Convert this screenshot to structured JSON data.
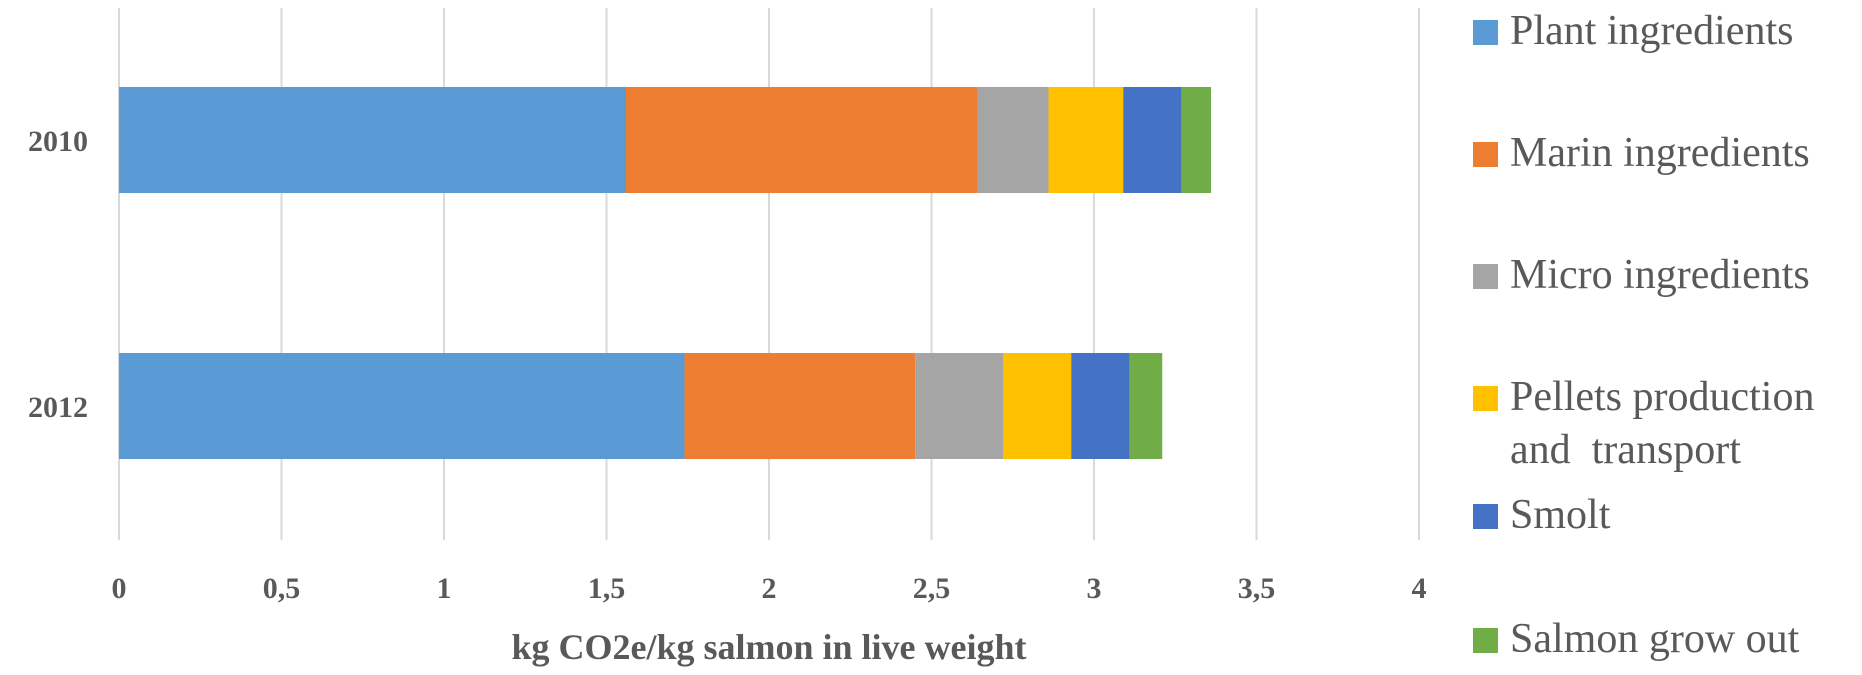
{
  "chart_data": {
    "type": "bar",
    "orientation": "horizontal",
    "stacked": true,
    "categories": [
      "2010",
      "2012"
    ],
    "series": [
      {
        "name": "Plant ingredients",
        "color": "#5B9BD5",
        "values": [
          1.56,
          1.74
        ]
      },
      {
        "name": "Marin ingredients",
        "color": "#ED7D31",
        "values": [
          1.08,
          0.71
        ]
      },
      {
        "name": "Micro ingredients",
        "color": "#A5A5A5",
        "values": [
          0.22,
          0.27
        ]
      },
      {
        "name": "Pellets production and transport",
        "color": "#FFC000",
        "values": [
          0.23,
          0.21
        ]
      },
      {
        "name": "Smolt",
        "color": "#4472C4",
        "values": [
          0.18,
          0.18
        ]
      },
      {
        "name": "Salmon grow out",
        "color": "#70AD47",
        "values": [
          0.09,
          0.1
        ]
      }
    ],
    "x_ticks": [
      "0",
      "0,5",
      "1",
      "1,5",
      "2",
      "2,5",
      "3",
      "3,5",
      "4"
    ],
    "xlim": [
      0,
      4
    ],
    "xlabel": "kg CO2e/kg salmon in live weight",
    "ylabel": "",
    "title": "",
    "grid": true,
    "legend_position": "right",
    "legend_lines": [
      [
        "Plant ingredients"
      ],
      [
        "Marin ingredients"
      ],
      [
        "Micro ingredients"
      ],
      [
        "Pellets production",
        "and  transport"
      ],
      [
        "Smolt"
      ],
      [
        "Salmon grow out"
      ]
    ]
  }
}
